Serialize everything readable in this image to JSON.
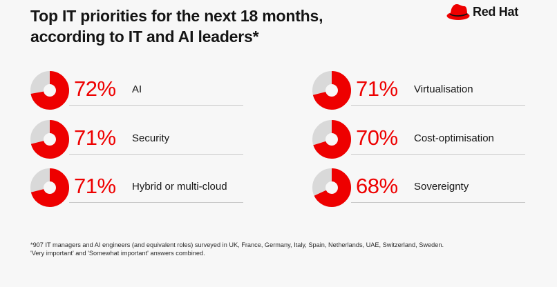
{
  "title_lines": [
    "Top IT priorities for the next 18 months,",
    "according to IT and AI leaders*"
  ],
  "logo": {
    "text": "Red Hat"
  },
  "colors": {
    "accent": "#ee0000",
    "track": "#d9d9d9",
    "text": "#151515"
  },
  "chart_data": {
    "type": "pie",
    "title": "Top IT priorities for the next 18 months, according to IT and AI leaders*",
    "unit": "%",
    "categories": [
      "AI",
      "Security",
      "Hybrid or multi-cloud",
      "Virtualisation",
      "Cost-optimisation",
      "Sovereignty"
    ],
    "values": [
      72,
      71,
      71,
      71,
      70,
      68
    ],
    "value_labels": [
      "72%",
      "71%",
      "71%",
      "71%",
      "70%",
      "68%"
    ]
  },
  "footnote_lines": [
    "*907 IT managers and AI engineers (and equivalent roles) surveyed in UK, France, Germany, Italy, Spain, Netherlands, UAE, Switzerland, Sweden.",
    "'Very important' and 'Somewhat important' answers combined."
  ]
}
